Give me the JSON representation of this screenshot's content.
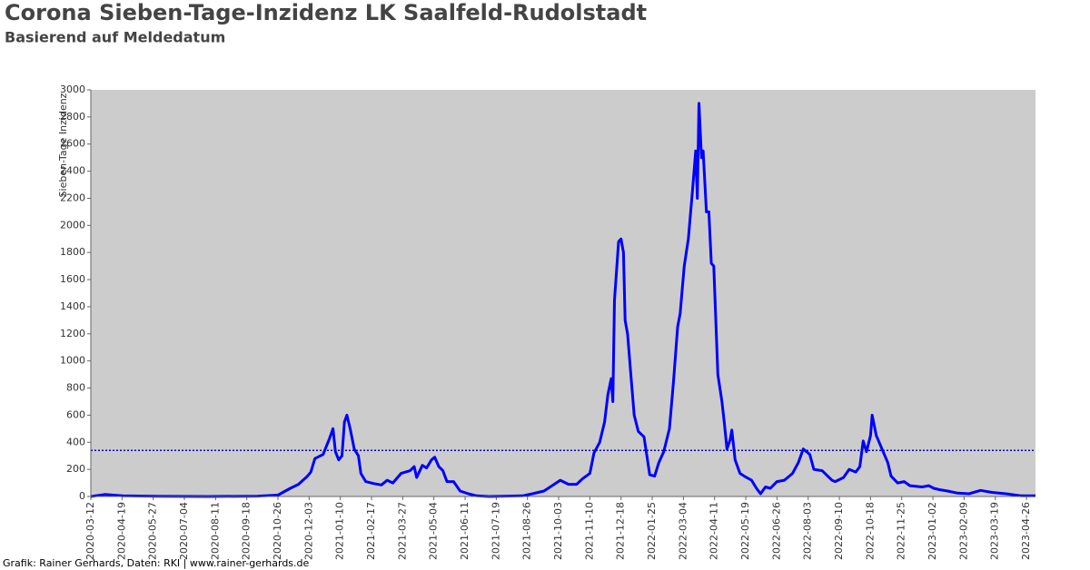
{
  "chart_data": {
    "type": "line",
    "title": "Corona Sieben-Tage-Inzidenz LK Saalfeld-Rudolstadt",
    "subtitle": "Basierend auf Meldedatum",
    "y_label": "Sieben-Tage Inzidenz",
    "footer": "Grafik: Rainer Gerhards, Daten: RKI | www.rainer-gerhards.de",
    "color": "#0000ff",
    "reference_line": 340,
    "reference_color": "#0000cc",
    "xlim": [
      "2020-03-12",
      "2023-05-07"
    ],
    "ylim": [
      0,
      3000
    ],
    "yticks": [
      0,
      200,
      400,
      600,
      800,
      1000,
      1200,
      1400,
      1600,
      1800,
      2000,
      2200,
      2400,
      2600,
      2800,
      3000
    ],
    "xticks": [
      "2020-03-12",
      "2020-04-19",
      "2020-05-27",
      "2020-07-04",
      "2020-08-11",
      "2020-09-18",
      "2020-10-26",
      "2020-12-03",
      "2021-01-10",
      "2021-02-17",
      "2021-03-27",
      "2021-05-04",
      "2021-06-11",
      "2021-07-19",
      "2021-08-26",
      "2021-10-03",
      "2021-11-10",
      "2021-12-18",
      "2022-01-25",
      "2022-03-04",
      "2022-04-11",
      "2022-05-19",
      "2022-06-26",
      "2022-08-03",
      "2022-09-10",
      "2022-10-18",
      "2022-11-25",
      "2023-01-02",
      "2023-02-09",
      "2023-03-19",
      "2023-04-26"
    ],
    "x": [
      "2020-03-12",
      "2020-03-29",
      "2020-04-20",
      "2020-06-01",
      "2020-08-01",
      "2020-10-01",
      "2020-10-26",
      "2020-11-10",
      "2020-11-20",
      "2020-12-01",
      "2020-12-05",
      "2020-12-10",
      "2020-12-20",
      "2020-12-28",
      "2021-01-01",
      "2021-01-04",
      "2021-01-08",
      "2021-01-12",
      "2021-01-15",
      "2021-01-18",
      "2021-01-22",
      "2021-01-27",
      "2021-02-01",
      "2021-02-04",
      "2021-02-10",
      "2021-02-20",
      "2021-03-01",
      "2021-03-08",
      "2021-03-15",
      "2021-03-25",
      "2021-04-05",
      "2021-04-10",
      "2021-04-13",
      "2021-04-20",
      "2021-04-25",
      "2021-05-01",
      "2021-05-05",
      "2021-05-10",
      "2021-05-15",
      "2021-05-20",
      "2021-05-28",
      "2021-06-05",
      "2021-06-15",
      "2021-06-25",
      "2021-07-10",
      "2021-08-20",
      "2021-09-01",
      "2021-09-15",
      "2021-09-25",
      "2021-10-05",
      "2021-10-15",
      "2021-10-25",
      "2021-11-01",
      "2021-11-10",
      "2021-11-15",
      "2021-11-22",
      "2021-11-28",
      "2021-12-02",
      "2021-12-06",
      "2021-12-08",
      "2021-12-10",
      "2021-12-15",
      "2021-12-18",
      "2021-12-21",
      "2021-12-23",
      "2021-12-26",
      "2021-12-30",
      "2022-01-03",
      "2022-01-08",
      "2022-01-15",
      "2022-01-22",
      "2022-01-28",
      "2022-02-02",
      "2022-02-08",
      "2022-02-15",
      "2022-02-20",
      "2022-02-25",
      "2022-02-28",
      "2022-03-05",
      "2022-03-10",
      "2022-03-15",
      "2022-03-19",
      "2022-03-21",
      "2022-03-23",
      "2022-03-26",
      "2022-03-28",
      "2022-04-01",
      "2022-04-04",
      "2022-04-07",
      "2022-04-10",
      "2022-04-15",
      "2022-04-20",
      "2022-04-23",
      "2022-04-26",
      "2022-04-30",
      "2022-05-02",
      "2022-05-06",
      "2022-05-12",
      "2022-05-20",
      "2022-05-26",
      "2022-06-01",
      "2022-06-06",
      "2022-06-12",
      "2022-06-18",
      "2022-06-26",
      "2022-07-05",
      "2022-07-15",
      "2022-07-22",
      "2022-07-28",
      "2022-08-05",
      "2022-08-10",
      "2022-08-20",
      "2022-09-01",
      "2022-09-05",
      "2022-09-15",
      "2022-09-22",
      "2022-09-30",
      "2022-10-05",
      "2022-10-09",
      "2022-10-13",
      "2022-10-18",
      "2022-10-20",
      "2022-10-25",
      "2022-11-01",
      "2022-11-08",
      "2022-11-12",
      "2022-11-20",
      "2022-11-28",
      "2022-12-05",
      "2022-12-20",
      "2022-12-28",
      "2023-01-03",
      "2023-01-10",
      "2023-01-20",
      "2023-02-01",
      "2023-02-15",
      "2023-03-01",
      "2023-03-15",
      "2023-04-01",
      "2023-04-20",
      "2023-05-07"
    ],
    "values": [
      0,
      15,
      5,
      2,
      0,
      3,
      10,
      60,
      90,
      150,
      180,
      280,
      310,
      430,
      500,
      330,
      270,
      300,
      550,
      600,
      500,
      350,
      300,
      170,
      110,
      95,
      85,
      120,
      100,
      170,
      190,
      220,
      140,
      230,
      210,
      270,
      290,
      220,
      190,
      110,
      110,
      40,
      20,
      5,
      0,
      5,
      20,
      40,
      80,
      120,
      90,
      90,
      130,
      170,
      320,
      400,
      550,
      750,
      870,
      700,
      1450,
      1880,
      1900,
      1800,
      1300,
      1200,
      900,
      600,
      480,
      440,
      160,
      150,
      250,
      330,
      500,
      850,
      1250,
      1350,
      1700,
      1900,
      2250,
      2550,
      2200,
      2900,
      2500,
      2550,
      2100,
      2100,
      1720,
      1700,
      900,
      700,
      540,
      350,
      420,
      490,
      270,
      170,
      140,
      120,
      60,
      20,
      70,
      60,
      110,
      120,
      170,
      250,
      350,
      310,
      200,
      190,
      120,
      110,
      140,
      200,
      180,
      220,
      410,
      330,
      450,
      600,
      450,
      350,
      250,
      150,
      100,
      110,
      80,
      70,
      80,
      60,
      50,
      40,
      25,
      20,
      45,
      30,
      20,
      5,
      5
    ]
  }
}
